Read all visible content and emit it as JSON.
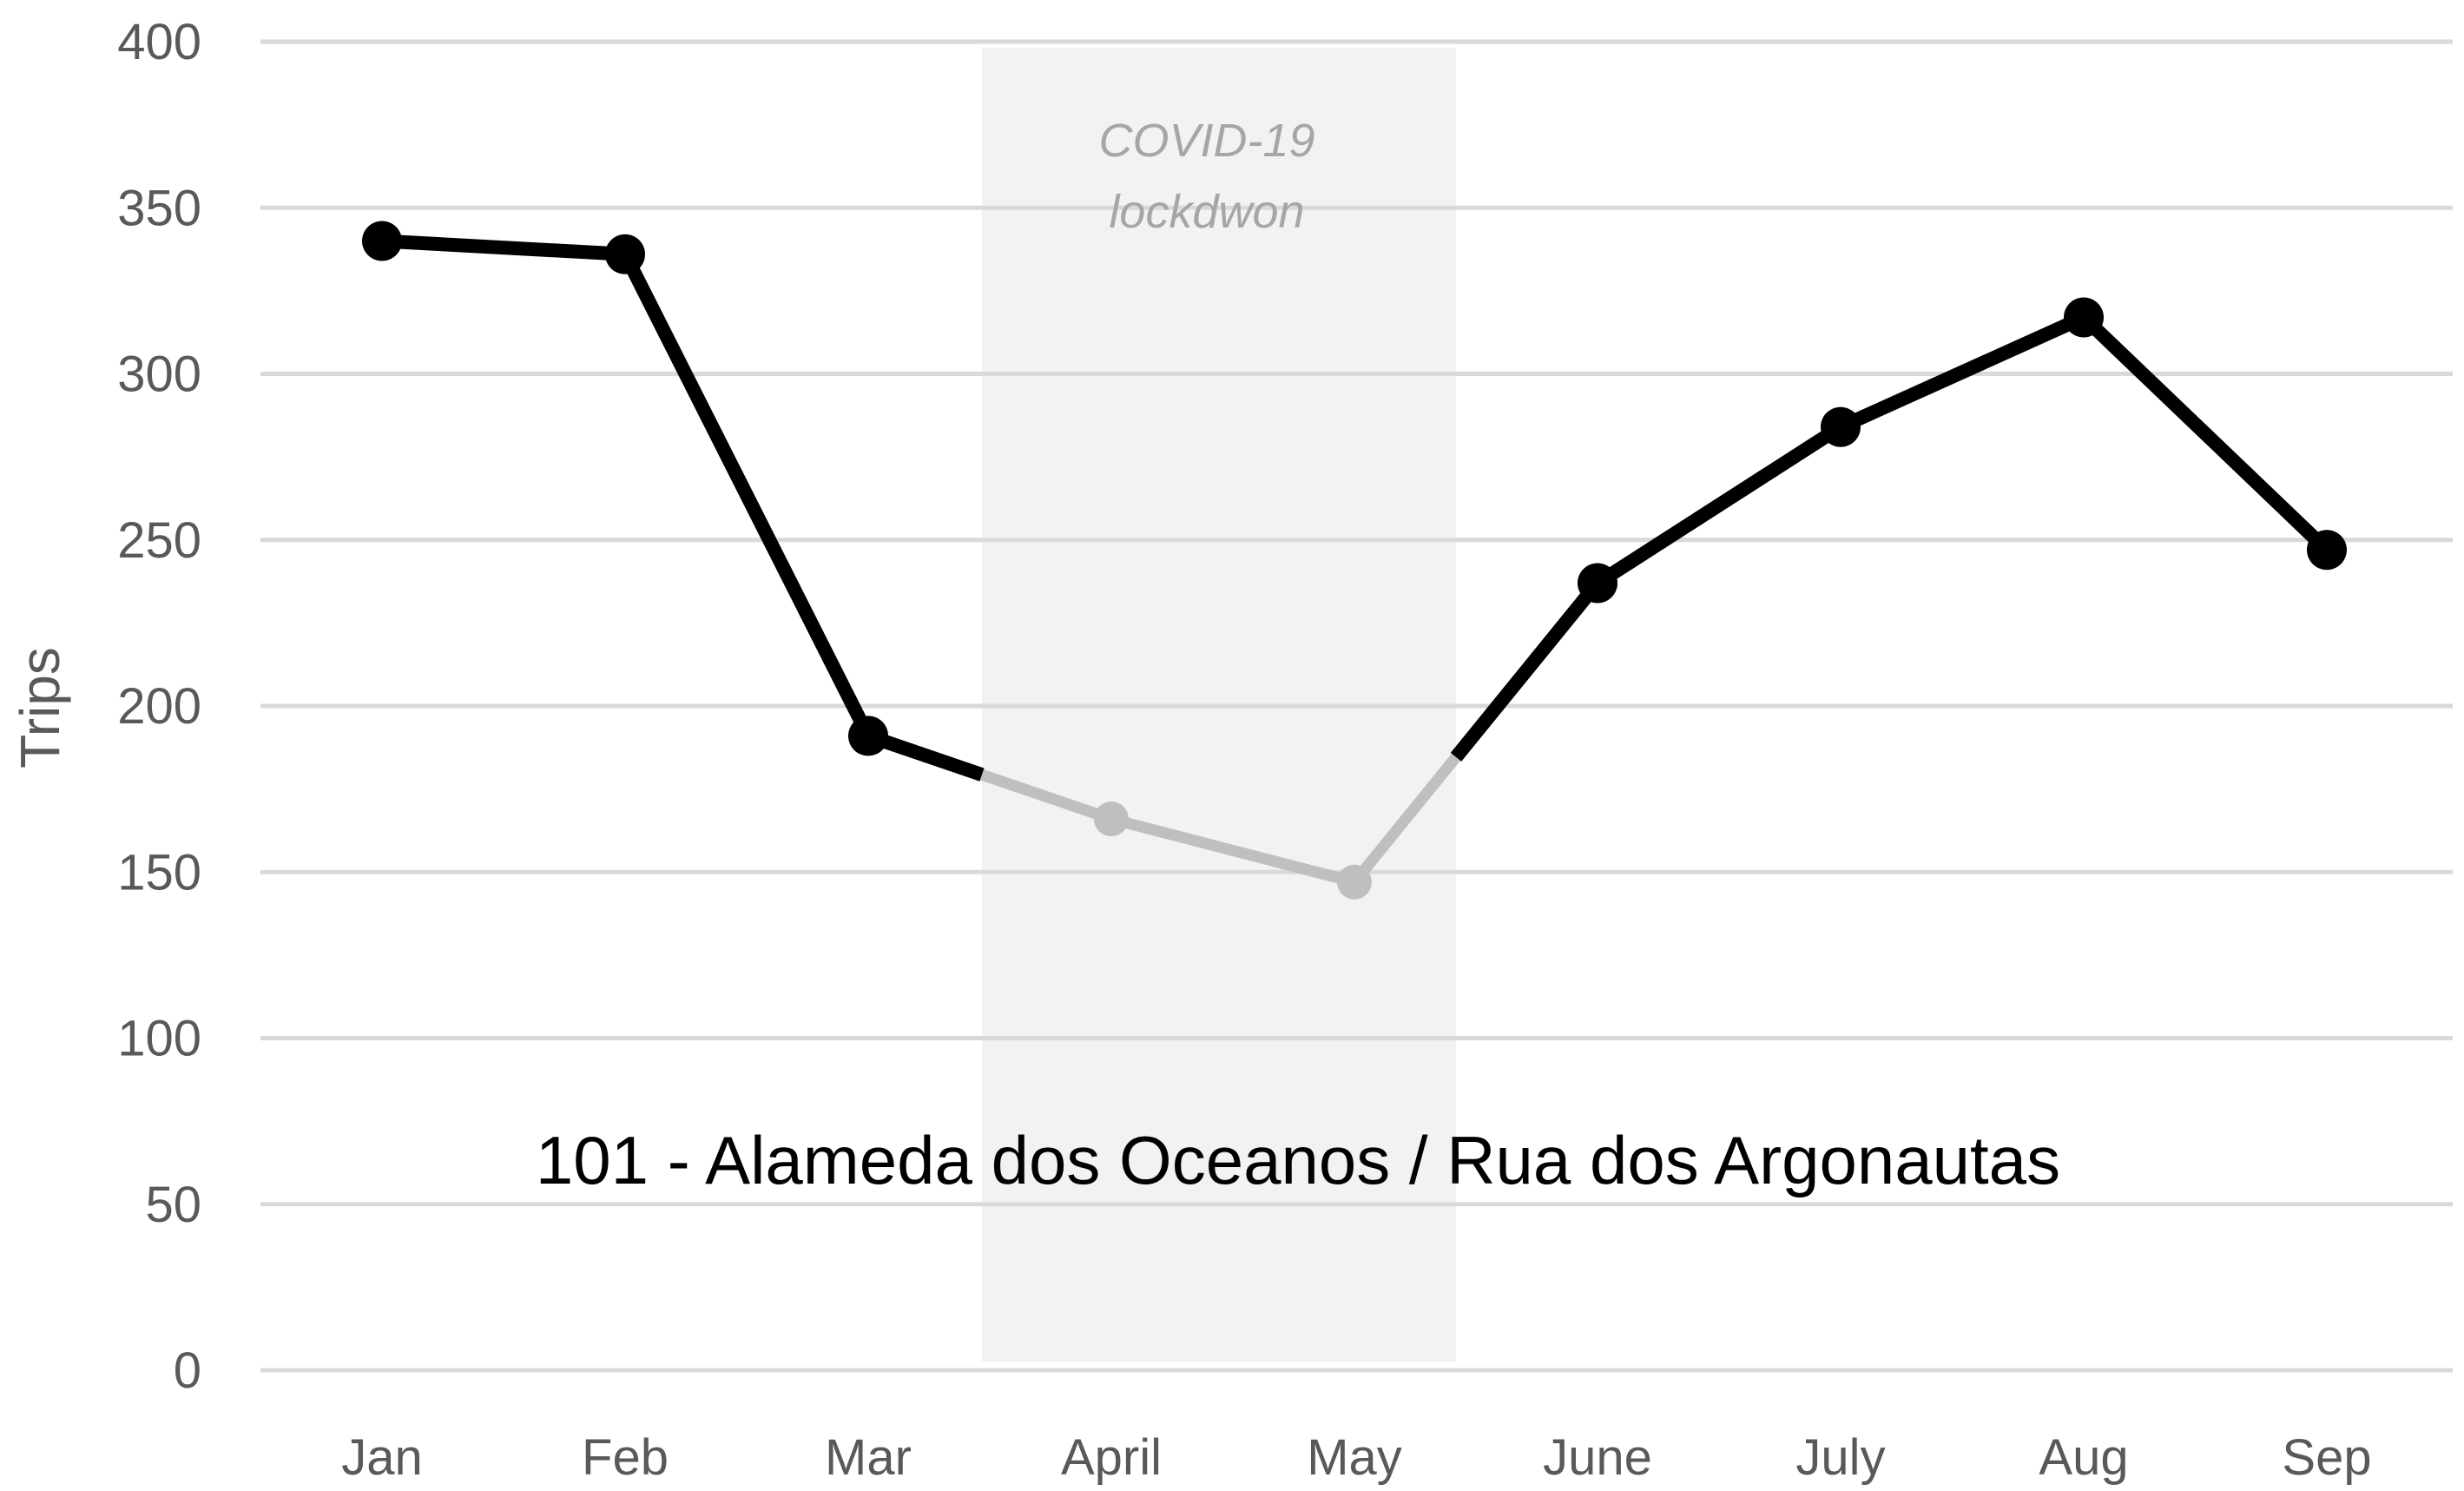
{
  "chart_data": {
    "type": "line",
    "title": "101 - Alameda dos Oceanos / Rua dos Argonautas",
    "xlabel": "",
    "ylabel": "Trips",
    "categories": [
      "Jan",
      "Feb",
      "Mar",
      "April",
      "May",
      "June",
      "July",
      "Aug",
      "Sep"
    ],
    "series": [
      {
        "values": [
          340,
          336,
          191,
          166,
          147,
          237,
          284,
          317,
          247
        ]
      }
    ],
    "ylim": [
      0,
      400
    ],
    "yticks": [
      0,
      50,
      100,
      150,
      200,
      250,
      300,
      350,
      400
    ],
    "grid": true,
    "legend": "none",
    "shaded_period": {
      "label_line1": "COVID-19",
      "label_line2": "lockdwon",
      "color": "#f2f2f2",
      "highlight_categories": [
        "April",
        "May"
      ]
    },
    "colors": {
      "line": "#000000",
      "highlight": "#bfbfbf",
      "grid": "#d9d9d9",
      "text": "#595959"
    }
  }
}
